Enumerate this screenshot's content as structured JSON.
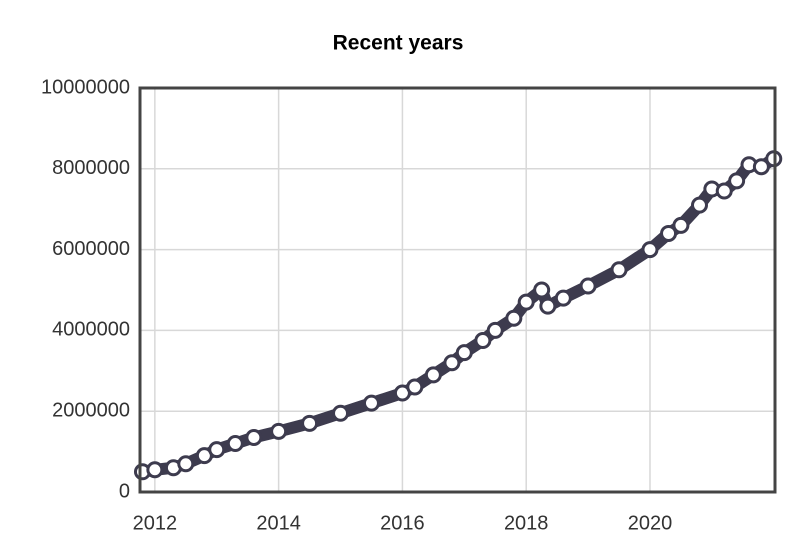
{
  "chart_data": {
    "type": "line",
    "title": "Recent years",
    "x": [
      2011.8,
      2012.0,
      2012.3,
      2012.5,
      2012.8,
      2013.0,
      2013.3,
      2013.6,
      2014.0,
      2014.5,
      2015.0,
      2015.5,
      2016.0,
      2016.2,
      2016.5,
      2016.8,
      2017.0,
      2017.3,
      2017.5,
      2017.8,
      2018.0,
      2018.25,
      2018.35,
      2018.6,
      2019.0,
      2019.5,
      2020.0,
      2020.3,
      2020.5,
      2020.8,
      2021.0,
      2021.2,
      2021.4,
      2021.6,
      2021.8,
      2022.0
    ],
    "values": [
      500000,
      550000,
      600000,
      700000,
      900000,
      1050000,
      1200000,
      1350000,
      1500000,
      1700000,
      1950000,
      2200000,
      2450000,
      2600000,
      2900000,
      3200000,
      3450000,
      3750000,
      4000000,
      4300000,
      4700000,
      5000000,
      4600000,
      4800000,
      5100000,
      5500000,
      6000000,
      6400000,
      6600000,
      7100000,
      7500000,
      7450000,
      7700000,
      8100000,
      8050000,
      8250000
    ],
    "color": "#3d3b4e",
    "xlim": [
      2011.76,
      2022.02
    ],
    "xticks": [
      2012,
      2014,
      2016,
      2018,
      2020
    ],
    "ylim": [
      0,
      10000000
    ],
    "yticks": [
      0,
      2000000,
      4000000,
      6000000,
      8000000,
      10000000
    ],
    "grid": true
  }
}
